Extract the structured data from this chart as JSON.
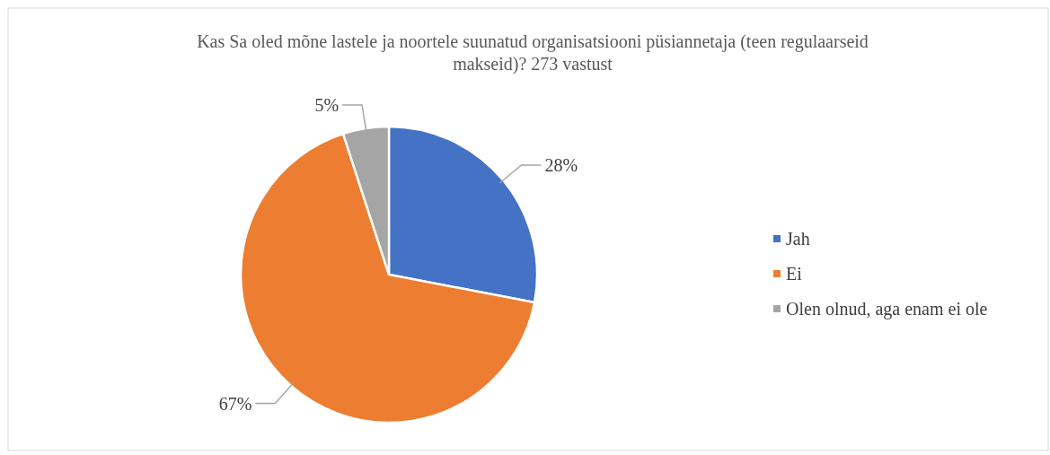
{
  "chart_data": {
    "type": "pie",
    "title": "Kas Sa oled mõne lastele ja noortele suunatud organisatsiooni püsiannetaja (teen regulaarseid makseid)? 273 vastust",
    "categories": [
      "Jah",
      "Ei",
      "Olen olnud, aga enam ei ole"
    ],
    "values": [
      28,
      67,
      5
    ],
    "colors": [
      "#4472c4",
      "#ed7d31",
      "#a5a5a5"
    ],
    "value_labels": [
      "28%",
      "67%",
      "5%"
    ],
    "legend": "right"
  }
}
